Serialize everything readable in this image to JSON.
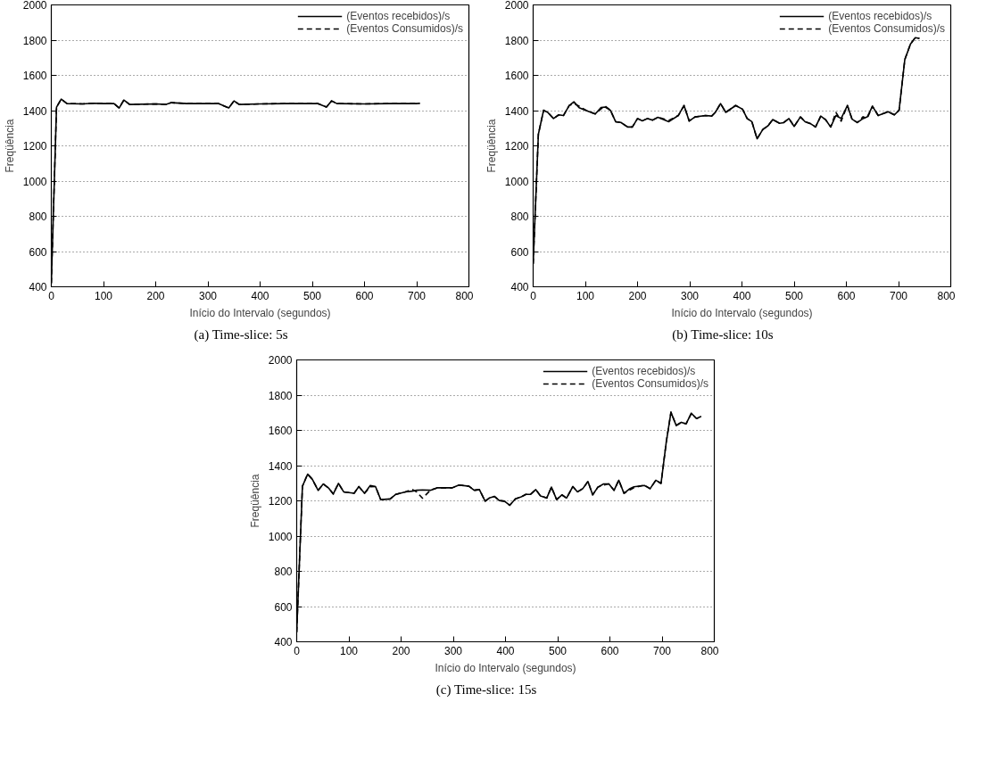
{
  "chart_data": [
    {
      "type": "line",
      "xlabel": "Início do Intervalo (segundos)",
      "ylabel": "Freqüência",
      "annotations": [
        "(a) Time-slice: 5s"
      ],
      "xlim": [
        0,
        800
      ],
      "ylim": [
        400,
        2000
      ],
      "xticks": [
        0,
        100,
        200,
        300,
        400,
        500,
        600,
        700,
        800
      ],
      "yticks": [
        400,
        600,
        800,
        1000,
        1200,
        1400,
        1600,
        1800,
        2000
      ],
      "grid": "y",
      "legend": "top right",
      "x": [
        0,
        10,
        19,
        30,
        60,
        80,
        100,
        120,
        130,
        139,
        150,
        200,
        220,
        230,
        260,
        320,
        340,
        350,
        360,
        400,
        450,
        510,
        527,
        537,
        547,
        600,
        650,
        700,
        706
      ],
      "series": [
        {
          "name": "(Eventos recebidos)/s",
          "color": "#000000",
          "line_style": "solid",
          "values": [
            420,
            1420,
            1465,
            1440,
            1438,
            1442,
            1440,
            1440,
            1415,
            1460,
            1435,
            1438,
            1435,
            1445,
            1440,
            1440,
            1415,
            1455,
            1435,
            1438,
            1440,
            1440,
            1420,
            1455,
            1440,
            1438,
            1440,
            1440,
            1442
          ]
        },
        {
          "name": "(Eventos Consumidos)/s",
          "color": "#000000",
          "line_style": "dashed",
          "values": [
            420,
            1420,
            1465,
            1440,
            1438,
            1442,
            1440,
            1440,
            1415,
            1460,
            1435,
            1438,
            1435,
            1445,
            1440,
            1440,
            1415,
            1455,
            1435,
            1438,
            1440,
            1440,
            1420,
            1455,
            1440,
            1438,
            1440,
            1440,
            1442
          ]
        }
      ]
    },
    {
      "type": "line",
      "xlabel": "Início do Intervalo (segundos)",
      "ylabel": "Freqüência",
      "annotations": [
        "(b) Time-slice: 10s"
      ],
      "xlim": [
        0,
        800
      ],
      "ylim": [
        400,
        2000
      ],
      "xticks": [
        0,
        100,
        200,
        300,
        400,
        500,
        600,
        700,
        800
      ],
      "yticks": [
        400,
        600,
        800,
        1000,
        1200,
        1400,
        1600,
        1800,
        2000
      ],
      "grid": "y",
      "legend": "top right",
      "x": [
        0,
        10,
        20,
        28,
        39,
        49,
        58,
        69,
        78,
        88,
        103,
        119,
        130,
        138,
        148,
        158,
        168,
        181,
        190,
        200,
        209,
        219,
        229,
        239,
        260,
        278,
        289,
        299,
        310,
        330,
        342,
        349,
        359,
        369,
        388,
        401,
        410,
        419,
        429,
        440,
        450,
        459,
        472,
        480,
        490,
        500,
        512,
        521,
        532,
        541,
        551,
        560,
        570,
        580,
        590,
        602,
        611,
        621,
        632,
        640,
        650,
        661,
        680,
        692,
        701,
        712,
        723,
        732,
        740
      ],
      "series": [
        {
          "name": "(Eventos recebidos)/s",
          "color": "#000000",
          "line_style": "solid",
          "values": [
            530,
            1266,
            1402,
            1390,
            1355,
            1376,
            1372,
            1429,
            1450,
            1417,
            1399,
            1381,
            1417,
            1420,
            1402,
            1337,
            1333,
            1307,
            1307,
            1355,
            1342,
            1355,
            1346,
            1362,
            1337,
            1372,
            1429,
            1341,
            1364,
            1372,
            1369,
            1390,
            1440,
            1390,
            1429,
            1408,
            1355,
            1337,
            1240,
            1293,
            1314,
            1349,
            1328,
            1332,
            1355,
            1310,
            1364,
            1337,
            1325,
            1307,
            1369,
            1349,
            1307,
            1372,
            1355,
            1429,
            1351,
            1332,
            1355,
            1364,
            1425,
            1372,
            1394,
            1376,
            1402,
            1690,
            1779,
            1814,
            1810
          ]
        },
        {
          "name": "(Eventos Consumidos)/s",
          "color": "#000000",
          "line_style": "dashed",
          "values": [
            530,
            1266,
            1402,
            1390,
            1355,
            1376,
            1372,
            1429,
            1440,
            1425,
            1399,
            1381,
            1410,
            1425,
            1402,
            1337,
            1333,
            1307,
            1307,
            1355,
            1342,
            1355,
            1346,
            1362,
            1345,
            1372,
            1429,
            1341,
            1364,
            1372,
            1369,
            1390,
            1440,
            1390,
            1429,
            1408,
            1355,
            1337,
            1240,
            1293,
            1314,
            1349,
            1328,
            1332,
            1355,
            1310,
            1364,
            1337,
            1325,
            1307,
            1369,
            1349,
            1307,
            1390,
            1340,
            1429,
            1351,
            1332,
            1365,
            1355,
            1425,
            1372,
            1394,
            1376,
            1402,
            1690,
            1779,
            1814,
            1810
          ]
        }
      ]
    },
    {
      "type": "line",
      "xlabel": "Início do Intervalo (segundos)",
      "ylabel": "Freqüência",
      "annotations": [
        "(c) Time-slice: 15s"
      ],
      "xlim": [
        0,
        800
      ],
      "ylim": [
        400,
        2000
      ],
      "xticks": [
        0,
        100,
        200,
        300,
        400,
        500,
        600,
        700,
        800
      ],
      "yticks": [
        400,
        600,
        800,
        1000,
        1200,
        1400,
        1600,
        1800,
        2000
      ],
      "grid": "y",
      "legend": "top right",
      "x": [
        0,
        11,
        21,
        30,
        41,
        51,
        61,
        70,
        80,
        90,
        110,
        119,
        130,
        141,
        151,
        161,
        179,
        190,
        208,
        221,
        230,
        241,
        256,
        269,
        298,
        311,
        330,
        340,
        350,
        361,
        369,
        379,
        388,
        398,
        408,
        419,
        429,
        439,
        448,
        458,
        467,
        479,
        488,
        498,
        508,
        517,
        529,
        538,
        548,
        558,
        567,
        577,
        588,
        598,
        608,
        617,
        627,
        637,
        646,
        666,
        677,
        688,
        698,
        708,
        717,
        727,
        737,
        746,
        756,
        766,
        775
      ],
      "series": [
        {
          "name": "(Eventos recebidos)/s",
          "color": "#000000",
          "line_style": "solid",
          "values": [
            455,
            1283,
            1352,
            1322,
            1260,
            1296,
            1273,
            1239,
            1299,
            1251,
            1243,
            1281,
            1243,
            1287,
            1281,
            1207,
            1211,
            1237,
            1251,
            1255,
            1260,
            1262,
            1260,
            1274,
            1274,
            1290,
            1283,
            1260,
            1264,
            1198,
            1216,
            1225,
            1202,
            1198,
            1175,
            1211,
            1221,
            1237,
            1237,
            1264,
            1228,
            1216,
            1278,
            1207,
            1234,
            1216,
            1281,
            1251,
            1269,
            1310,
            1234,
            1278,
            1296,
            1296,
            1260,
            1317,
            1243,
            1267,
            1280,
            1287,
            1269,
            1317,
            1299,
            1534,
            1703,
            1628,
            1646,
            1637,
            1697,
            1667,
            1680
          ]
        },
        {
          "name": "(Eventos Consumidos)/s",
          "color": "#000000",
          "line_style": "dashed",
          "values": [
            455,
            1283,
            1352,
            1322,
            1260,
            1296,
            1273,
            1239,
            1299,
            1251,
            1243,
            1281,
            1243,
            1280,
            1281,
            1207,
            1211,
            1237,
            1251,
            1265,
            1250,
            1215,
            1260,
            1274,
            1274,
            1290,
            1283,
            1260,
            1264,
            1198,
            1216,
            1225,
            1202,
            1198,
            1175,
            1211,
            1221,
            1237,
            1237,
            1264,
            1228,
            1216,
            1278,
            1207,
            1234,
            1216,
            1281,
            1251,
            1269,
            1310,
            1234,
            1278,
            1290,
            1296,
            1260,
            1317,
            1243,
            1260,
            1275,
            1290,
            1269,
            1317,
            1299,
            1534,
            1703,
            1628,
            1646,
            1637,
            1697,
            1667,
            1680
          ]
        }
      ]
    }
  ]
}
